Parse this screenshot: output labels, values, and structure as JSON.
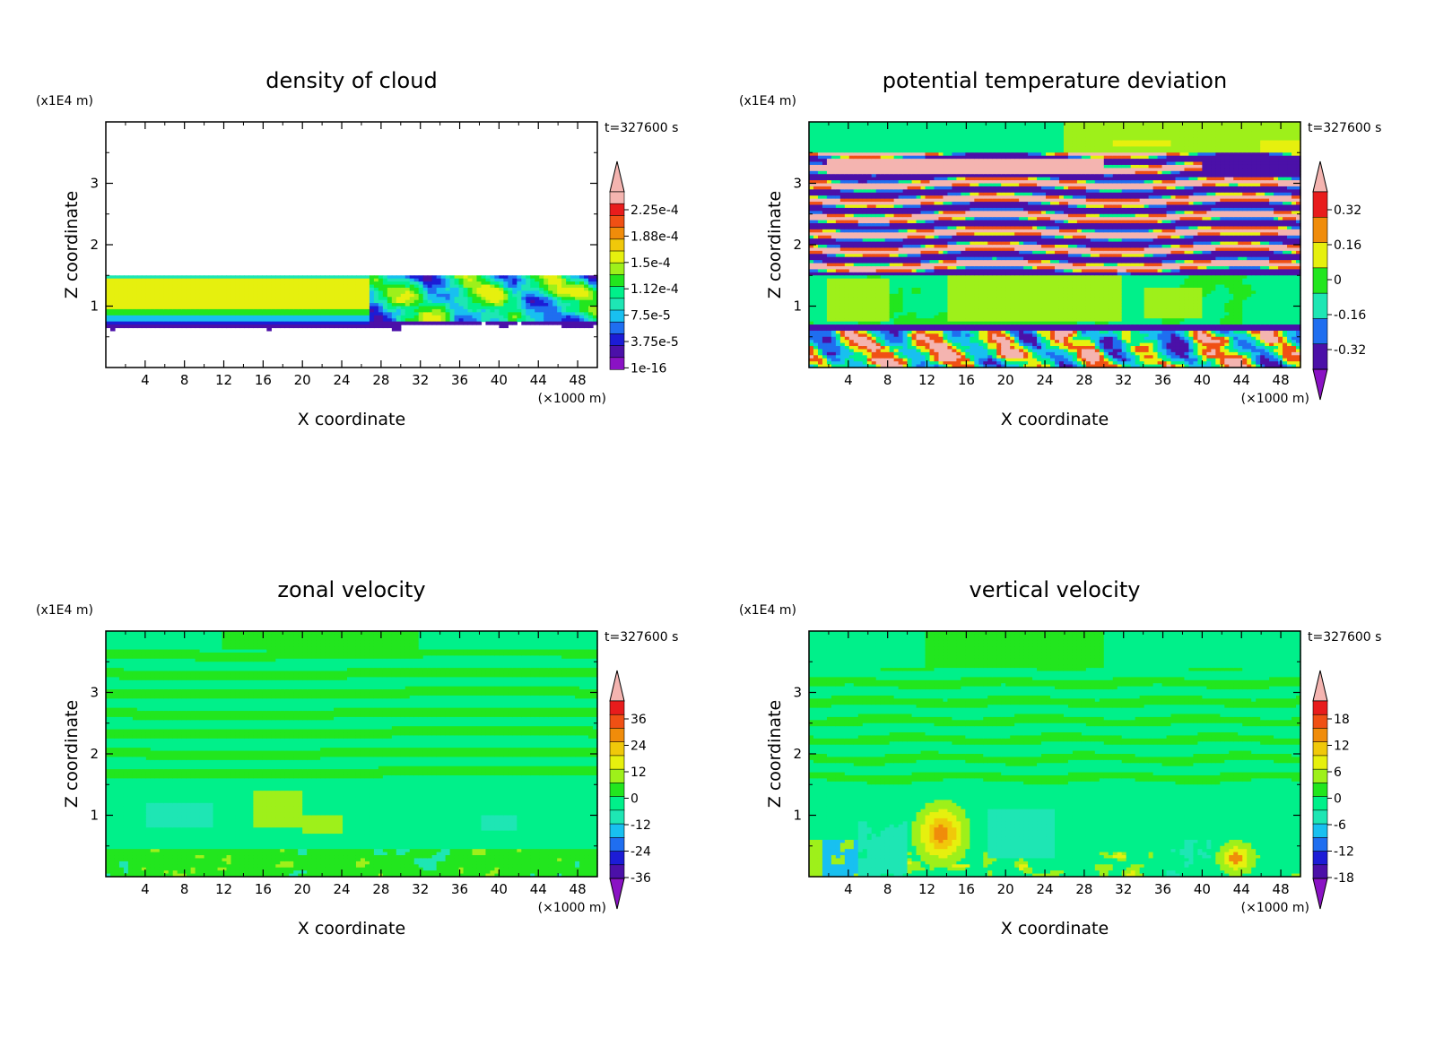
{
  "chart_data": [
    {
      "type": "heatmap",
      "title": "density of cloud",
      "xlabel": "X coordinate",
      "ylabel": "Z coordinate",
      "x_unit": "(×1000 m)",
      "y_unit": "(x1E4 m)",
      "time_label": "t=327600 s",
      "x_ticks": [
        "4",
        "8",
        "12",
        "16",
        "20",
        "24",
        "28",
        "32",
        "36",
        "40",
        "44",
        "48"
      ],
      "y_ticks": [
        "1",
        "2",
        "3"
      ],
      "xlim": [
        0,
        50
      ],
      "ylim": [
        0,
        4
      ],
      "colorbar_labels": [
        "2.25e-4",
        "1.88e-4",
        "1.5e-4",
        "1.12e-4",
        "7.5e-5",
        "3.75e-5",
        "1e-16"
      ],
      "field": "cloud"
    },
    {
      "type": "heatmap",
      "title": "potential temperature deviation",
      "xlabel": "X coordinate",
      "ylabel": "Z coordinate",
      "x_unit": "(×1000 m)",
      "y_unit": "(x1E4 m)",
      "time_label": "t=327600 s",
      "x_ticks": [
        "4",
        "8",
        "12",
        "16",
        "20",
        "24",
        "28",
        "32",
        "36",
        "40",
        "44",
        "48"
      ],
      "y_ticks": [
        "1",
        "2",
        "3"
      ],
      "xlim": [
        0,
        50
      ],
      "ylim": [
        0,
        4
      ],
      "colorbar_labels": [
        "0.32",
        "0.16",
        "0",
        "-0.16",
        "-0.32"
      ],
      "field": "theta"
    },
    {
      "type": "heatmap",
      "title": "zonal velocity",
      "xlabel": "X coordinate",
      "ylabel": "Z coordinate",
      "x_unit": "(×1000 m)",
      "y_unit": "(x1E4 m)",
      "time_label": "t=327600 s",
      "x_ticks": [
        "4",
        "8",
        "12",
        "16",
        "20",
        "24",
        "28",
        "32",
        "36",
        "40",
        "44",
        "48"
      ],
      "y_ticks": [
        "1",
        "2",
        "3"
      ],
      "xlim": [
        0,
        50
      ],
      "ylim": [
        0,
        4
      ],
      "colorbar_labels": [
        "36",
        "24",
        "12",
        "0",
        "-12",
        "-24",
        "-36"
      ],
      "field": "zonal"
    },
    {
      "type": "heatmap",
      "title": "vertical velocity",
      "xlabel": "X coordinate",
      "ylabel": "Z coordinate",
      "x_unit": "(×1000 m)",
      "y_unit": "(x1E4 m)",
      "time_label": "t=327600 s",
      "x_ticks": [
        "4",
        "8",
        "12",
        "16",
        "20",
        "24",
        "28",
        "32",
        "36",
        "40",
        "44",
        "48"
      ],
      "y_ticks": [
        "1",
        "2",
        "3"
      ],
      "xlim": [
        0,
        50
      ],
      "ylim": [
        0,
        4
      ],
      "colorbar_labels": [
        "18",
        "12",
        "6",
        "0",
        "-6",
        "-12",
        "-18"
      ],
      "field": "vertical"
    }
  ],
  "colors": {
    "rainbow": [
      "#8a12c4",
      "#4b10a8",
      "#1c1cd6",
      "#1f6ef0",
      "#18c0f0",
      "#1ee6b4",
      "#00f08a",
      "#22e61e",
      "#9ef01a",
      "#e6f00e",
      "#f0c80a",
      "#f08c0a",
      "#f05014",
      "#e81c1c",
      "#f4b4b0"
    ]
  }
}
